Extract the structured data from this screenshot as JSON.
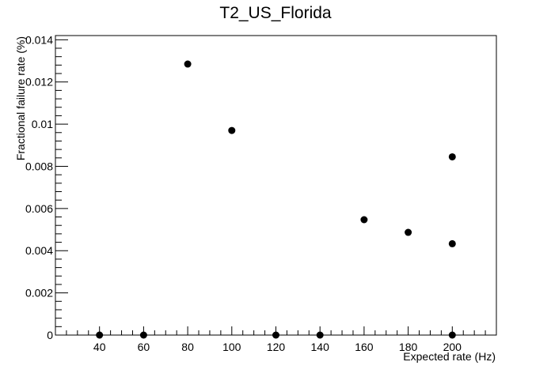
{
  "chart_data": {
    "type": "scatter",
    "title": "T2_US_Florida",
    "xlabel": "Expected rate (Hz)",
    "ylabel": "Fractional failure rate (%)",
    "xlim": [
      20,
      220
    ],
    "ylim": [
      0,
      0.0142
    ],
    "x_ticks": [
      40,
      60,
      80,
      100,
      120,
      140,
      160,
      180,
      200
    ],
    "x_tick_labels": [
      "40",
      "60",
      "80",
      "100",
      "120",
      "140",
      "160",
      "180",
      "200"
    ],
    "y_ticks": [
      0,
      0.002,
      0.004,
      0.006,
      0.008,
      0.01,
      0.012,
      0.014
    ],
    "y_tick_labels": [
      "0",
      "0.002",
      "0.004",
      "0.006",
      "0.008",
      "0.01",
      "0.012",
      "0.014"
    ],
    "grid": false,
    "legend": false,
    "points": [
      {
        "x": 40,
        "y": 0
      },
      {
        "x": 60,
        "y": 0
      },
      {
        "x": 80,
        "y": 0.01285
      },
      {
        "x": 100,
        "y": 0.0097
      },
      {
        "x": 120,
        "y": 0
      },
      {
        "x": 140,
        "y": 0
      },
      {
        "x": 160,
        "y": 0.00547
      },
      {
        "x": 180,
        "y": 0.00487
      },
      {
        "x": 200,
        "y": 0.00845
      },
      {
        "x": 200,
        "y": 0.00433
      },
      {
        "x": 200,
        "y": 0
      }
    ],
    "colors": {
      "marker": "#000000",
      "axis": "#000000",
      "background": "#ffffff"
    }
  }
}
